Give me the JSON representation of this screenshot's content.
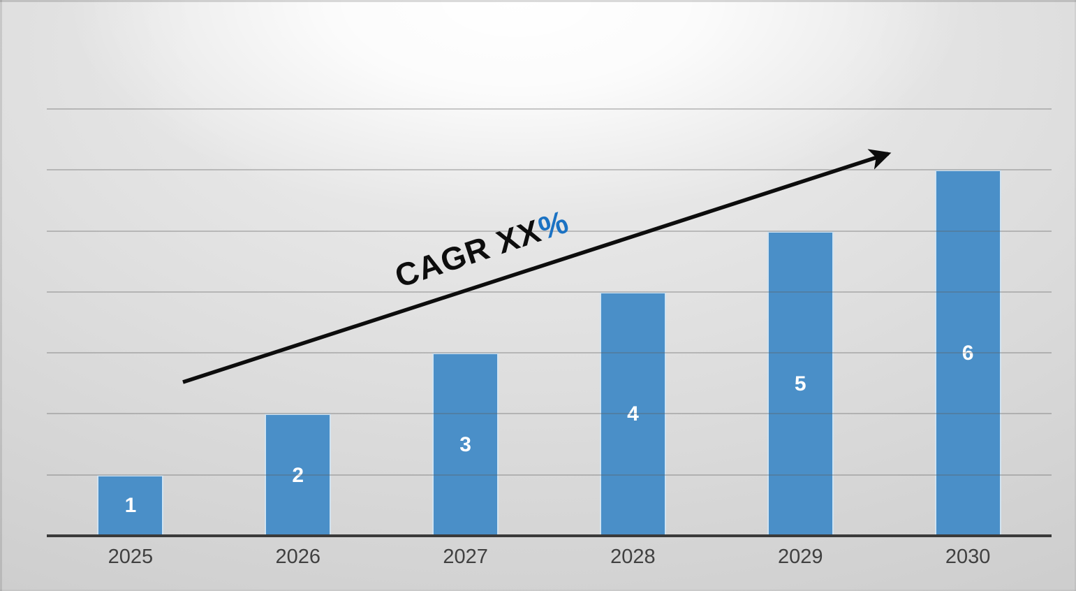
{
  "chart_data": {
    "type": "bar",
    "title": "",
    "xlabel": "",
    "ylabel": "",
    "categories": [
      "2025",
      "2026",
      "2027",
      "2028",
      "2029",
      "2030"
    ],
    "values": [
      1,
      2,
      3,
      4,
      5,
      6
    ],
    "data_labels": [
      "1",
      "2",
      "3",
      "4",
      "5",
      "6"
    ],
    "ylim": [
      0,
      7
    ],
    "gridline_values": [
      1,
      2,
      3,
      4,
      5,
      6,
      7
    ],
    "grid": "horizontal",
    "legend": "none",
    "annotation": {
      "label": "CAGR XX",
      "accent_label": "%"
    },
    "trend_arrow": "ascending arrow from lower-left to upper-right",
    "colors": {
      "bar": "#4a8fc8",
      "bar_border": "#ffffff",
      "data_label": "#ffffff",
      "tick_label": "#404040",
      "axis_line": "#3a3a3a",
      "gridline": "#a9a9a9",
      "arrow": "#0d0d0d",
      "annotation_text": "#0d0d0d",
      "accent_text": "#1b72c3"
    }
  }
}
